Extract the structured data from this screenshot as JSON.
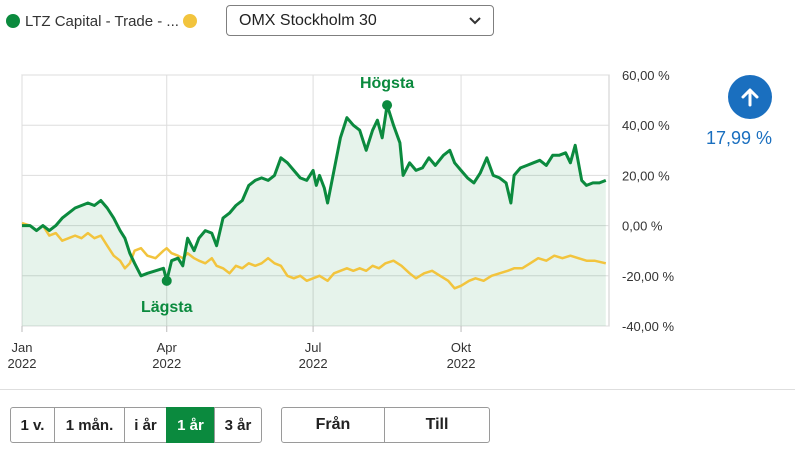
{
  "legend": {
    "series1_label": "LTZ Capital - Trade - ...",
    "series1_color": "#0b8a3e",
    "series2_color": "#f2c43d",
    "dropdown_value": "OMX Stockholm 30",
    "dropdown_icon": "chevron-down-icon"
  },
  "kpi": {
    "value": "17,99 %",
    "icon": "arrow-up-icon",
    "color": "#1a6fbf"
  },
  "range_buttons": [
    "1 v.",
    "1 mån.",
    "i år",
    "1 år",
    "3 år"
  ],
  "active_range": "1 år",
  "date_buttons": {
    "from": "Från",
    "to": "Till"
  },
  "chart_data": {
    "type": "area",
    "ylim": [
      -40,
      60
    ],
    "xlim": [
      "2022-01-01",
      "2023-01-01"
    ],
    "y_ticks": [
      60,
      40,
      20,
      0,
      -20,
      -40
    ],
    "y_tick_labels": [
      "60,00 %",
      "40,00 %",
      "20,00 %",
      "0,00 %",
      "-20,00 %",
      "-40,00 %"
    ],
    "x_ticks": [
      "2022-01-01",
      "2022-04-01",
      "2022-07-01",
      "2022-10-01"
    ],
    "x_tick_labels": [
      [
        "Jan",
        "2022"
      ],
      [
        "Apr",
        "2022"
      ],
      [
        "Jul",
        "2022"
      ],
      [
        "Okt",
        "2022"
      ]
    ],
    "grid": true,
    "annotations": [
      {
        "text": "Högsta",
        "series": 0,
        "kind": "max"
      },
      {
        "text": "Lägsta",
        "series": 0,
        "kind": "min"
      }
    ],
    "series": [
      {
        "color": "#0b8a3e",
        "fill": true,
        "points": [
          [
            "2022-01-01",
            0
          ],
          [
            "2022-01-06",
            0
          ],
          [
            "2022-01-10",
            -2
          ],
          [
            "2022-01-14",
            0
          ],
          [
            "2022-01-18",
            -2
          ],
          [
            "2022-01-22",
            0
          ],
          [
            "2022-01-26",
            3
          ],
          [
            "2022-01-30",
            5
          ],
          [
            "2022-02-03",
            7
          ],
          [
            "2022-02-07",
            8
          ],
          [
            "2022-02-11",
            9
          ],
          [
            "2022-02-15",
            8
          ],
          [
            "2022-02-19",
            10
          ],
          [
            "2022-02-23",
            7
          ],
          [
            "2022-02-27",
            3
          ],
          [
            "2022-03-03",
            -2
          ],
          [
            "2022-03-06",
            -5
          ],
          [
            "2022-03-09",
            -11
          ],
          [
            "2022-03-12",
            -15
          ],
          [
            "2022-03-16",
            -20
          ],
          [
            "2022-03-20",
            -19
          ],
          [
            "2022-03-25",
            -18
          ],
          [
            "2022-03-30",
            -17
          ],
          [
            "2022-04-01",
            -22
          ],
          [
            "2022-04-04",
            -14
          ],
          [
            "2022-04-08",
            -13
          ],
          [
            "2022-04-11",
            -16
          ],
          [
            "2022-04-14",
            -5
          ],
          [
            "2022-04-18",
            -10
          ],
          [
            "2022-04-21",
            -5
          ],
          [
            "2022-04-25",
            -2
          ],
          [
            "2022-04-29",
            -3
          ],
          [
            "2022-05-02",
            -8
          ],
          [
            "2022-05-06",
            3
          ],
          [
            "2022-05-10",
            5
          ],
          [
            "2022-05-14",
            8
          ],
          [
            "2022-05-18",
            10
          ],
          [
            "2022-05-22",
            16
          ],
          [
            "2022-05-26",
            18
          ],
          [
            "2022-05-30",
            19
          ],
          [
            "2022-06-03",
            18
          ],
          [
            "2022-06-07",
            20
          ],
          [
            "2022-06-11",
            27
          ],
          [
            "2022-06-15",
            25
          ],
          [
            "2022-06-19",
            22
          ],
          [
            "2022-06-23",
            19
          ],
          [
            "2022-06-27",
            18
          ],
          [
            "2022-07-01",
            22
          ],
          [
            "2022-07-03",
            16
          ],
          [
            "2022-07-05",
            20
          ],
          [
            "2022-07-08",
            15
          ],
          [
            "2022-07-10",
            9
          ],
          [
            "2022-07-14",
            22
          ],
          [
            "2022-07-18",
            35
          ],
          [
            "2022-07-22",
            43
          ],
          [
            "2022-07-26",
            40
          ],
          [
            "2022-07-30",
            38
          ],
          [
            "2022-08-03",
            30
          ],
          [
            "2022-08-07",
            38
          ],
          [
            "2022-08-10",
            42
          ],
          [
            "2022-08-13",
            35
          ],
          [
            "2022-08-16",
            48
          ],
          [
            "2022-08-20",
            40
          ],
          [
            "2022-08-24",
            33
          ],
          [
            "2022-08-26",
            20
          ],
          [
            "2022-08-30",
            25
          ],
          [
            "2022-09-03",
            22
          ],
          [
            "2022-09-07",
            23
          ],
          [
            "2022-09-11",
            27
          ],
          [
            "2022-09-15",
            24
          ],
          [
            "2022-09-20",
            28
          ],
          [
            "2022-09-24",
            30
          ],
          [
            "2022-09-27",
            25
          ],
          [
            "2022-10-01",
            22
          ],
          [
            "2022-10-05",
            19
          ],
          [
            "2022-10-09",
            17
          ],
          [
            "2022-10-13",
            21
          ],
          [
            "2022-10-17",
            27
          ],
          [
            "2022-10-21",
            20
          ],
          [
            "2022-10-25",
            19
          ],
          [
            "2022-10-29",
            17
          ],
          [
            "2022-11-01",
            9
          ],
          [
            "2022-11-03",
            20
          ],
          [
            "2022-11-07",
            23
          ],
          [
            "2022-11-11",
            24
          ],
          [
            "2022-11-15",
            25
          ],
          [
            "2022-11-19",
            26
          ],
          [
            "2022-11-23",
            24
          ],
          [
            "2022-11-27",
            28
          ],
          [
            "2022-12-01",
            28
          ],
          [
            "2022-12-05",
            29
          ],
          [
            "2022-12-08",
            25
          ],
          [
            "2022-12-11",
            32
          ],
          [
            "2022-12-15",
            18
          ],
          [
            "2022-12-18",
            16
          ],
          [
            "2022-12-22",
            17
          ],
          [
            "2022-12-26",
            17
          ],
          [
            "2022-12-30",
            18
          ]
        ]
      },
      {
        "color": "#f2c43d",
        "fill": false,
        "points": [
          [
            "2022-01-01",
            1
          ],
          [
            "2022-01-06",
            0
          ],
          [
            "2022-01-10",
            -2
          ],
          [
            "2022-01-14",
            0
          ],
          [
            "2022-01-18",
            -4
          ],
          [
            "2022-01-22",
            -3
          ],
          [
            "2022-01-26",
            -6
          ],
          [
            "2022-01-30",
            -5
          ],
          [
            "2022-02-03",
            -4
          ],
          [
            "2022-02-07",
            -5
          ],
          [
            "2022-02-11",
            -3
          ],
          [
            "2022-02-15",
            -5
          ],
          [
            "2022-02-19",
            -4
          ],
          [
            "2022-02-23",
            -8
          ],
          [
            "2022-02-27",
            -12
          ],
          [
            "2022-03-03",
            -14
          ],
          [
            "2022-03-06",
            -17
          ],
          [
            "2022-03-09",
            -15
          ],
          [
            "2022-03-12",
            -10
          ],
          [
            "2022-03-16",
            -9
          ],
          [
            "2022-03-20",
            -12
          ],
          [
            "2022-03-25",
            -13
          ],
          [
            "2022-03-30",
            -10
          ],
          [
            "2022-04-01",
            -9
          ],
          [
            "2022-04-04",
            -11
          ],
          [
            "2022-04-08",
            -12
          ],
          [
            "2022-04-11",
            -13
          ],
          [
            "2022-04-14",
            -11
          ],
          [
            "2022-04-18",
            -13
          ],
          [
            "2022-04-21",
            -14
          ],
          [
            "2022-04-25",
            -15
          ],
          [
            "2022-04-29",
            -13
          ],
          [
            "2022-05-02",
            -16
          ],
          [
            "2022-05-06",
            -17
          ],
          [
            "2022-05-10",
            -19
          ],
          [
            "2022-05-14",
            -16
          ],
          [
            "2022-05-18",
            -17
          ],
          [
            "2022-05-22",
            -15
          ],
          [
            "2022-05-26",
            -16
          ],
          [
            "2022-05-30",
            -15
          ],
          [
            "2022-06-03",
            -13
          ],
          [
            "2022-06-07",
            -15
          ],
          [
            "2022-06-11",
            -16
          ],
          [
            "2022-06-15",
            -20
          ],
          [
            "2022-06-19",
            -21
          ],
          [
            "2022-06-23",
            -20
          ],
          [
            "2022-06-27",
            -22
          ],
          [
            "2022-07-01",
            -21
          ],
          [
            "2022-07-05",
            -20
          ],
          [
            "2022-07-10",
            -22
          ],
          [
            "2022-07-14",
            -19
          ],
          [
            "2022-07-18",
            -18
          ],
          [
            "2022-07-22",
            -17
          ],
          [
            "2022-07-26",
            -18
          ],
          [
            "2022-07-30",
            -17
          ],
          [
            "2022-08-03",
            -18
          ],
          [
            "2022-08-07",
            -16
          ],
          [
            "2022-08-11",
            -17
          ],
          [
            "2022-08-15",
            -15
          ],
          [
            "2022-08-20",
            -14
          ],
          [
            "2022-08-25",
            -16
          ],
          [
            "2022-08-30",
            -19
          ],
          [
            "2022-09-03",
            -21
          ],
          [
            "2022-09-08",
            -19
          ],
          [
            "2022-09-13",
            -18
          ],
          [
            "2022-09-18",
            -20
          ],
          [
            "2022-09-23",
            -22
          ],
          [
            "2022-09-27",
            -25
          ],
          [
            "2022-10-01",
            -24
          ],
          [
            "2022-10-06",
            -22
          ],
          [
            "2022-10-10",
            -21
          ],
          [
            "2022-10-15",
            -22
          ],
          [
            "2022-10-20",
            -20
          ],
          [
            "2022-10-25",
            -19
          ],
          [
            "2022-10-30",
            -18
          ],
          [
            "2022-11-03",
            -17
          ],
          [
            "2022-11-08",
            -17
          ],
          [
            "2022-11-13",
            -15
          ],
          [
            "2022-11-18",
            -13
          ],
          [
            "2022-11-23",
            -14
          ],
          [
            "2022-11-28",
            -12
          ],
          [
            "2022-12-03",
            -13
          ],
          [
            "2022-12-08",
            -12
          ],
          [
            "2022-12-13",
            -13
          ],
          [
            "2022-12-18",
            -14
          ],
          [
            "2022-12-23",
            -14
          ],
          [
            "2022-12-30",
            -15
          ]
        ]
      }
    ]
  }
}
